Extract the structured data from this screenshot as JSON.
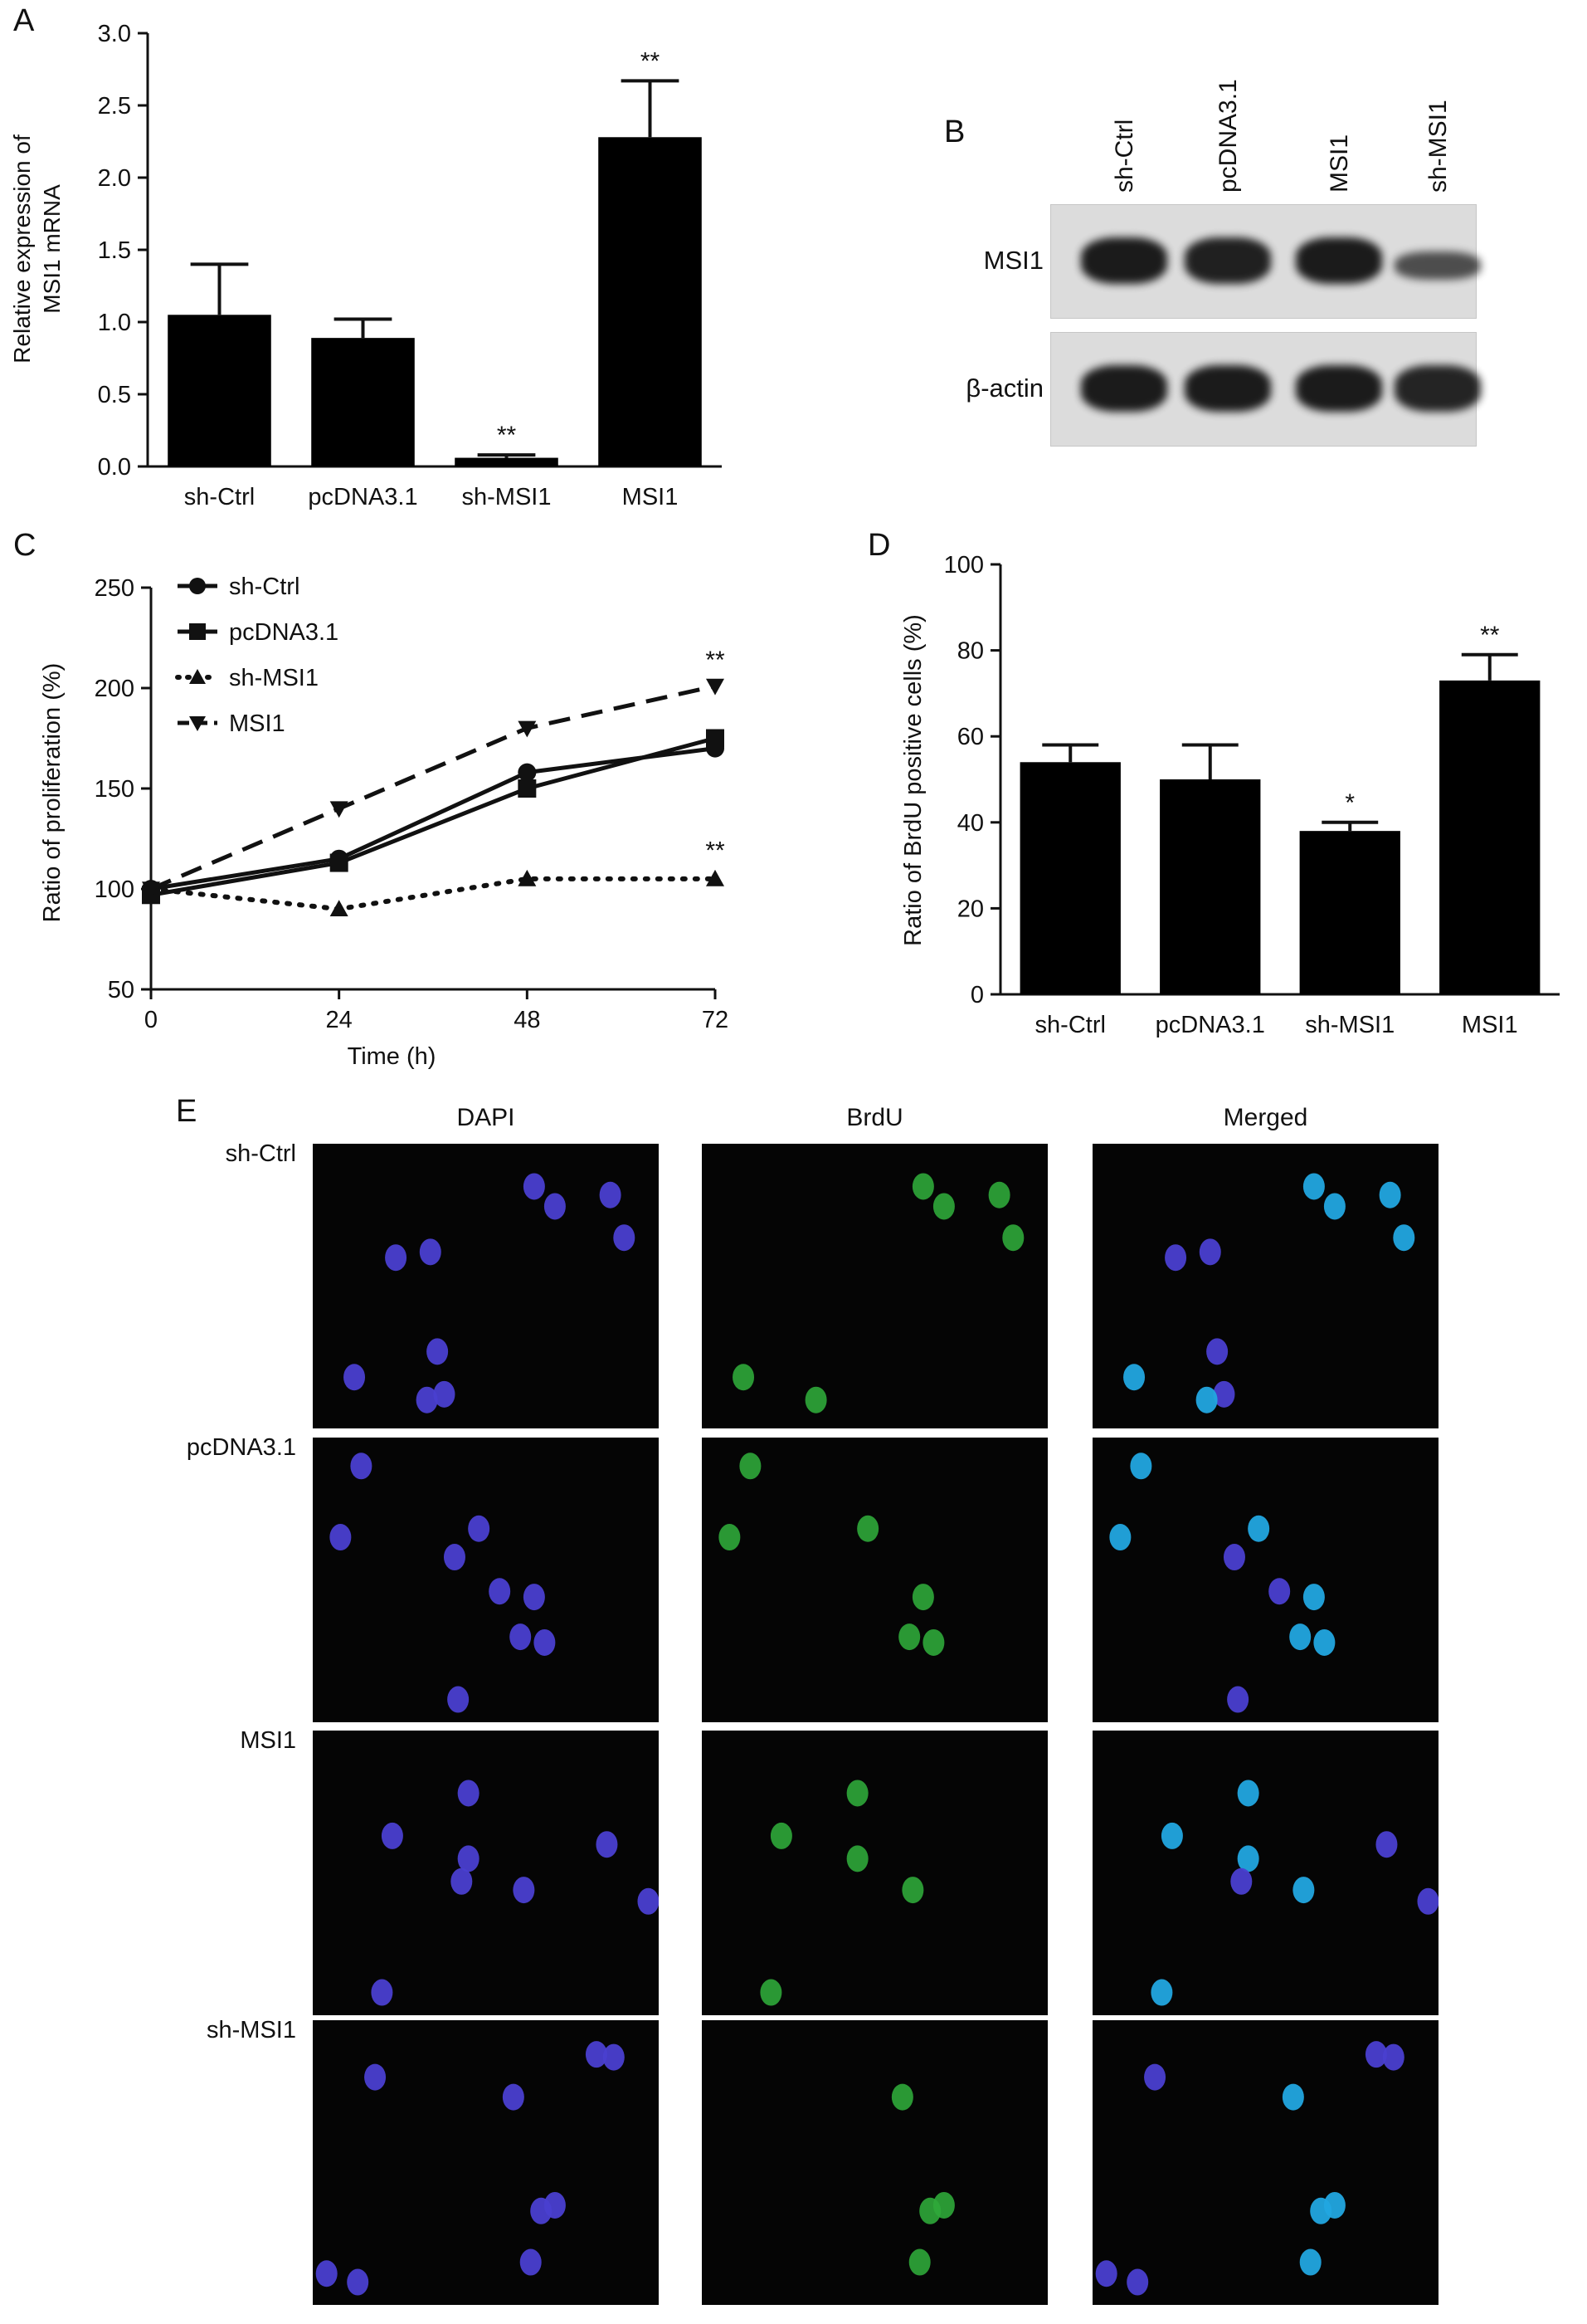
{
  "panels": {
    "A": {
      "label": "A",
      "chart_data": {
        "type": "bar",
        "ylabel_lines": [
          "Relative expression of",
          "MSI1 mRNA"
        ],
        "categories": [
          "sh-Ctrl",
          "pcDNA3.1",
          "sh-MSI1",
          "MSI1"
        ],
        "values": [
          1.05,
          0.89,
          0.06,
          2.28
        ],
        "errors": [
          0.35,
          0.13,
          0.02,
          0.39
        ],
        "annotations": [
          "",
          "",
          "**",
          "**"
        ],
        "ylim": [
          0,
          3.0
        ],
        "yticks": [
          "0.0",
          "0.5",
          "1.0",
          "1.5",
          "2.0",
          "2.5",
          "3.0"
        ]
      }
    },
    "B": {
      "label": "B",
      "lanes": [
        "sh-Ctrl",
        "pcDNA3.1",
        "MSI1",
        "sh-MSI1"
      ],
      "rows": [
        {
          "label": "MSI1",
          "intensity": [
            0.95,
            0.92,
            0.95,
            0.7
          ]
        },
        {
          "label": "β-actin",
          "intensity": [
            0.95,
            0.95,
            0.95,
            0.9
          ]
        }
      ]
    },
    "C": {
      "label": "C",
      "chart_data": {
        "type": "line",
        "xlabel": "Time (h)",
        "ylabel": "Ratio of proliferation (%)",
        "x": [
          0,
          24,
          48,
          72
        ],
        "xticks": [
          "0",
          "24",
          "48",
          "72"
        ],
        "ylim": [
          50,
          250
        ],
        "yticks": [
          "50",
          "100",
          "150",
          "200",
          "250"
        ],
        "legend_position": "top-left",
        "series": [
          {
            "name": "sh-Ctrl",
            "marker": "circle",
            "dash": "solid",
            "values": [
              100,
              115,
              158,
              170
            ]
          },
          {
            "name": "pcDNA3.1",
            "marker": "square",
            "dash": "solid",
            "values": [
              97,
              113,
              150,
              175
            ]
          },
          {
            "name": "sh-MSI1",
            "marker": "triangle-up",
            "dash": "dotted",
            "values": [
              100,
              90,
              105,
              105
            ]
          },
          {
            "name": "MSI1",
            "marker": "triangle-down",
            "dash": "dashed",
            "values": [
              100,
              140,
              180,
              201
            ]
          }
        ],
        "annotations": [
          {
            "x": 72,
            "y": 210,
            "text": "**"
          },
          {
            "x": 72,
            "y": 115,
            "text": "**"
          }
        ]
      }
    },
    "D": {
      "label": "D",
      "chart_data": {
        "type": "bar",
        "ylabel": "Ratio of BrdU positive cells (%)",
        "categories": [
          "sh-Ctrl",
          "pcDNA3.1",
          "sh-MSI1",
          "MSI1"
        ],
        "values": [
          54,
          50,
          38,
          73
        ],
        "errors": [
          4,
          8,
          2,
          6
        ],
        "annotations": [
          "",
          "",
          "*",
          "**"
        ],
        "ylim": [
          0,
          100
        ],
        "yticks": [
          "0",
          "20",
          "40",
          "60",
          "80",
          "100"
        ]
      }
    },
    "E": {
      "label": "E",
      "columns": [
        "DAPI",
        "BrdU",
        "Merged"
      ],
      "rows": [
        "sh-Ctrl",
        "pcDNA3.1",
        "MSI1",
        "sh-MSI1"
      ]
    }
  },
  "colors": {
    "ink": "#111111",
    "bar": "#000000",
    "dapi": "#4a3fd0",
    "brdu": "#2fa83a",
    "merged": "#22a6e0"
  }
}
